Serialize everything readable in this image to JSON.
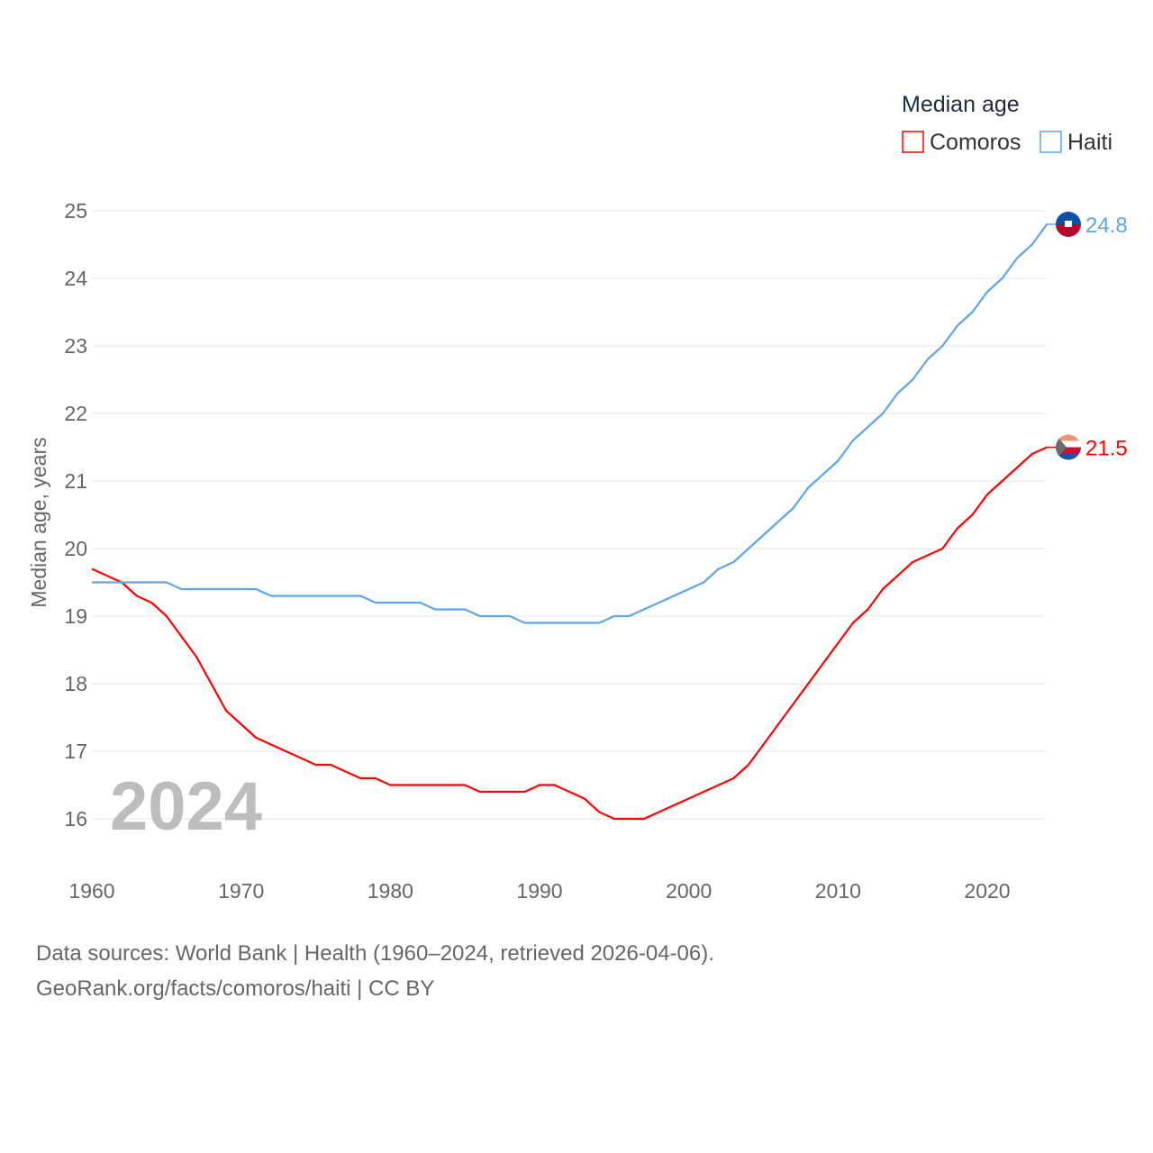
{
  "chart_data": {
    "type": "line",
    "title": "Median age",
    "ylabel": "Median age, years",
    "xlabel": "",
    "xlim": [
      1960,
      2024
    ],
    "ylim": [
      15.5,
      25.3
    ],
    "x_ticks": [
      1960,
      1970,
      1980,
      1990,
      2000,
      2010,
      2020
    ],
    "y_ticks": [
      16,
      17,
      18,
      19,
      20,
      21,
      22,
      23,
      24,
      25
    ],
    "grid": true,
    "legend_placement": "top-right",
    "year_label": "2024",
    "x": [
      1960,
      1961,
      1962,
      1963,
      1964,
      1965,
      1966,
      1967,
      1968,
      1969,
      1970,
      1971,
      1972,
      1973,
      1974,
      1975,
      1976,
      1977,
      1978,
      1979,
      1980,
      1981,
      1982,
      1983,
      1984,
      1985,
      1986,
      1987,
      1988,
      1989,
      1990,
      1991,
      1992,
      1993,
      1994,
      1995,
      1996,
      1997,
      1998,
      1999,
      2000,
      2001,
      2002,
      2003,
      2004,
      2005,
      2006,
      2007,
      2008,
      2009,
      2010,
      2011,
      2012,
      2013,
      2014,
      2015,
      2016,
      2017,
      2018,
      2019,
      2020,
      2021,
      2022,
      2023,
      2024
    ],
    "series": [
      {
        "name": "Comoros",
        "color": "#ff0000",
        "end_label": "21.5",
        "values": [
          19.7,
          19.6,
          19.5,
          19.3,
          19.2,
          19.0,
          18.7,
          18.4,
          18.0,
          17.6,
          17.4,
          17.2,
          17.1,
          17.0,
          16.9,
          16.8,
          16.8,
          16.7,
          16.6,
          16.6,
          16.5,
          16.5,
          16.5,
          16.5,
          16.5,
          16.5,
          16.4,
          16.4,
          16.4,
          16.4,
          16.5,
          16.5,
          16.4,
          16.3,
          16.1,
          16.0,
          16.0,
          16.0,
          16.1,
          16.2,
          16.3,
          16.4,
          16.5,
          16.6,
          16.8,
          17.1,
          17.4,
          17.7,
          18.0,
          18.3,
          18.6,
          18.9,
          19.1,
          19.4,
          19.6,
          19.8,
          19.9,
          20.0,
          20.3,
          20.5,
          20.8,
          21.0,
          21.2,
          21.4,
          21.5
        ]
      },
      {
        "name": "Haiti",
        "color": "#5ea6ea",
        "end_label": "24.8",
        "values": [
          19.5,
          19.5,
          19.5,
          19.5,
          19.5,
          19.5,
          19.4,
          19.4,
          19.4,
          19.4,
          19.4,
          19.4,
          19.3,
          19.3,
          19.3,
          19.3,
          19.3,
          19.3,
          19.3,
          19.2,
          19.2,
          19.2,
          19.2,
          19.1,
          19.1,
          19.1,
          19.0,
          19.0,
          19.0,
          18.9,
          18.9,
          18.9,
          18.9,
          18.9,
          18.9,
          19.0,
          19.0,
          19.1,
          19.2,
          19.3,
          19.4,
          19.5,
          19.7,
          19.8,
          20.0,
          20.2,
          20.4,
          20.6,
          20.9,
          21.1,
          21.3,
          21.6,
          21.8,
          22.0,
          22.3,
          22.5,
          22.8,
          23.0,
          23.3,
          23.5,
          23.8,
          24.0,
          24.3,
          24.5,
          24.8
        ]
      }
    ]
  },
  "footer": {
    "line1": "Data sources: World Bank | Health (1960–2024, retrieved 2026-04-06).",
    "line2": "GeoRank.org/facts/comoros/haiti | CC BY"
  }
}
